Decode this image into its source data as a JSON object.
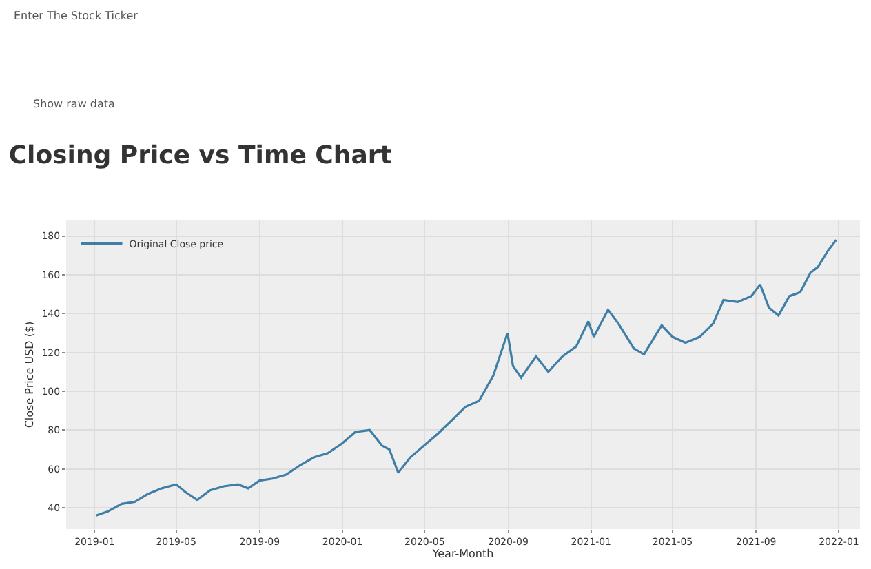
{
  "chart_data": {
    "type": "line",
    "title": "Closing Price vs Time Chart",
    "annotations": [
      "Enter The Stock Ticker",
      "Show raw data"
    ],
    "xlabel": "Year-Month",
    "ylabel": "Close Price USD ($)",
    "x": [
      "2019-01-03",
      "2019-01-20",
      "2019-02-10",
      "2019-03-01",
      "2019-03-20",
      "2019-04-10",
      "2019-05-01",
      "2019-05-15",
      "2019-06-01",
      "2019-06-20",
      "2019-07-10",
      "2019-07-31",
      "2019-08-15",
      "2019-09-01",
      "2019-09-20",
      "2019-10-10",
      "2019-10-31",
      "2019-11-20",
      "2019-12-10",
      "2019-12-31",
      "2020-01-20",
      "2020-02-10",
      "2020-02-28",
      "2020-03-10",
      "2020-03-23",
      "2020-04-10",
      "2020-04-30",
      "2020-05-20",
      "2020-06-10",
      "2020-06-30",
      "2020-07-20",
      "2020-08-10",
      "2020-08-31",
      "2020-09-08",
      "2020-09-20",
      "2020-10-12",
      "2020-10-30",
      "2020-11-20",
      "2020-12-10",
      "2020-12-28",
      "2021-01-05",
      "2021-01-26",
      "2021-02-10",
      "2021-03-05",
      "2021-03-20",
      "2021-04-15",
      "2021-05-01",
      "2021-05-20",
      "2021-06-10",
      "2021-06-30",
      "2021-07-15",
      "2021-08-05",
      "2021-08-25",
      "2021-09-07",
      "2021-09-20",
      "2021-10-04",
      "2021-10-20",
      "2021-11-05",
      "2021-11-20",
      "2021-12-01",
      "2021-12-15",
      "2021-12-28"
    ],
    "series": [
      {
        "name": "Original Close price",
        "color": "#3f7ea6",
        "values": [
          36,
          38,
          42,
          43,
          47,
          50,
          52,
          48,
          44,
          49,
          51,
          52,
          50,
          54,
          55,
          57,
          62,
          66,
          68,
          73,
          79,
          80,
          72,
          70,
          58,
          66,
          72,
          78,
          85,
          92,
          95,
          108,
          130,
          113,
          107,
          118,
          110,
          118,
          123,
          136,
          128,
          142,
          135,
          122,
          119,
          134,
          128,
          125,
          128,
          135,
          147,
          146,
          149,
          155,
          143,
          139,
          149,
          151,
          161,
          164,
          172,
          178
        ]
      }
    ],
    "xlim": [
      "2018-11-20",
      "2022-02-01"
    ],
    "xticks": [
      {
        "value": "2019-01",
        "label": "2019-01"
      },
      {
        "value": "2019-05",
        "label": "2019-05"
      },
      {
        "value": "2019-09",
        "label": "2019-09"
      },
      {
        "value": "2020-01",
        "label": "2020-01"
      },
      {
        "value": "2020-05",
        "label": "2020-05"
      },
      {
        "value": "2020-09",
        "label": "2020-09"
      },
      {
        "value": "2021-01",
        "label": "2021-01"
      },
      {
        "value": "2021-05",
        "label": "2021-05"
      },
      {
        "value": "2021-09",
        "label": "2021-09"
      },
      {
        "value": "2022-01",
        "label": "2022-01"
      }
    ],
    "ylim": [
      29,
      188
    ],
    "yticks": [
      40,
      60,
      80,
      100,
      120,
      140,
      160,
      180
    ],
    "grid": true,
    "legend": "top left",
    "marker": "none",
    "line_style": "solid"
  }
}
